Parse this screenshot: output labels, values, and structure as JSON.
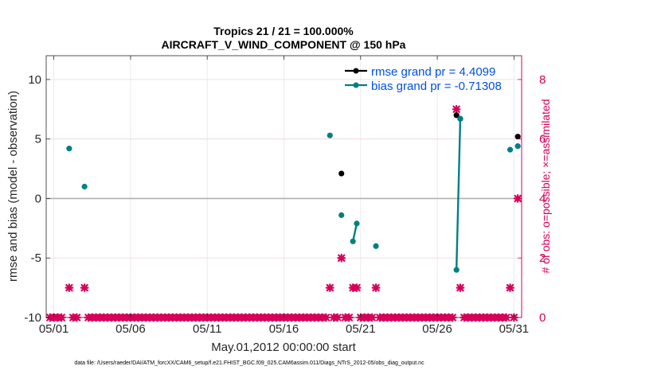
{
  "chart_data": {
    "type": "line",
    "title_line1": "Tropics 21 / 21 = 100.000%",
    "title_line2": "AIRCRAFT_V_WIND_COMPONENT @ 150 hPa",
    "xlabel": "May.01,2012 00:00:00 start",
    "ylabel_left": "rmse and bias (model - observation)",
    "ylabel_right": "# of obs: o=possible; ×=assimilated",
    "footer": "data file: /Users/raeder/DAI/ATM_forcXX/CAM6_setup/f.e21.FHIST_BGC.f09_025.CAM6assim.011/Diags_NTrS_2012-05/obs_diag_output.nc",
    "xlim": [
      0.5,
      31.5
    ],
    "ylim_left": [
      -10,
      12
    ],
    "ylim_right": [
      0,
      8.8
    ],
    "x_ticks": [
      1,
      6,
      11,
      16,
      21,
      26,
      31
    ],
    "x_tick_labels": [
      "05/01",
      "05/06",
      "05/11",
      "05/16",
      "05/21",
      "05/26",
      "05/31"
    ],
    "y_ticks_left": [
      -10,
      -5,
      0,
      5,
      10
    ],
    "y_tick_labels_left": [
      "-10",
      "-5",
      "0",
      "5",
      "10"
    ],
    "y_ticks_right": [
      0,
      2,
      4,
      6,
      8
    ],
    "y_tick_labels_right": [
      "0",
      "2",
      "4",
      "6",
      "8"
    ],
    "colors": {
      "rmse": "#000000",
      "bias": "#008080",
      "obs": "#d6005a",
      "legend_text": "#0050e6",
      "zero_line": "#b0b0b0",
      "grid": "#e6e6e6"
    },
    "series": [
      {
        "name": "rmse grand pr = 4.4099",
        "color": "#000000",
        "axis": "left",
        "segments": [
          [
            [
              19.75,
              2.1
            ]
          ],
          [
            [
              27.25,
              7.0
            ],
            [
              27.5,
              6.7
            ]
          ],
          [
            [
              31.25,
              5.2
            ]
          ]
        ]
      },
      {
        "name": "bias grand pr = -0.71308",
        "color": "#008080",
        "axis": "left",
        "segments": [
          [
            [
              2.0,
              4.2
            ]
          ],
          [
            [
              3.0,
              1.0
            ]
          ],
          [
            [
              19.0,
              5.3
            ]
          ],
          [
            [
              19.75,
              -1.4
            ]
          ],
          [
            [
              20.5,
              -3.6
            ],
            [
              20.75,
              -2.1
            ]
          ],
          [
            [
              22.0,
              -4.0
            ]
          ],
          [
            [
              27.25,
              -6.0
            ],
            [
              27.5,
              6.7
            ]
          ],
          [
            [
              30.75,
              4.1
            ]
          ],
          [
            [
              31.25,
              4.4
            ]
          ]
        ]
      }
    ],
    "obs_assimilated": {
      "name": "# of obs assimilated",
      "axis": "right",
      "x": [
        0.75,
        1.0,
        1.25,
        1.5,
        2.0,
        2.25,
        2.5,
        3.0,
        3.25,
        3.5,
        3.75,
        4.0,
        4.25,
        4.5,
        4.75,
        5.0,
        5.25,
        5.5,
        5.75,
        6.0,
        6.25,
        6.5,
        6.75,
        7.0,
        7.25,
        7.5,
        7.75,
        8.0,
        8.25,
        8.5,
        8.75,
        9.0,
        9.25,
        9.5,
        9.75,
        10.0,
        10.25,
        10.5,
        10.75,
        11.0,
        11.25,
        11.5,
        11.75,
        12.0,
        12.25,
        12.5,
        12.75,
        13.0,
        13.25,
        13.5,
        13.75,
        14.0,
        14.25,
        14.5,
        14.75,
        15.0,
        15.25,
        15.5,
        15.75,
        16.0,
        16.25,
        16.5,
        16.75,
        17.0,
        17.25,
        17.5,
        17.75,
        18.0,
        18.25,
        18.5,
        18.75,
        19.0,
        19.25,
        19.5,
        19.75,
        20.0,
        20.25,
        20.5,
        20.75,
        21.0,
        21.25,
        21.5,
        21.75,
        22.0,
        22.25,
        22.5,
        22.75,
        23.0,
        23.25,
        23.5,
        23.75,
        24.0,
        24.25,
        24.5,
        24.75,
        25.0,
        25.25,
        25.5,
        25.75,
        26.0,
        26.25,
        26.5,
        26.75,
        27.0,
        27.25,
        27.5,
        27.75,
        28.0,
        28.25,
        28.5,
        28.75,
        29.0,
        29.25,
        29.5,
        29.75,
        30.0,
        30.25,
        30.5,
        30.75,
        31.0,
        31.25
      ],
      "y": [
        0,
        0,
        0,
        0,
        1,
        0,
        0,
        1,
        0,
        0,
        0,
        0,
        0,
        0,
        0,
        0,
        0,
        0,
        0,
        0,
        0,
        0,
        0,
        0,
        0,
        0,
        0,
        0,
        0,
        0,
        0,
        0,
        0,
        0,
        0,
        0,
        0,
        0,
        0,
        0,
        0,
        0,
        0,
        0,
        0,
        0,
        0,
        0,
        0,
        0,
        0,
        0,
        0,
        0,
        0,
        0,
        0,
        0,
        0,
        0,
        0,
        0,
        0,
        0,
        0,
        0,
        0,
        0,
        0,
        0,
        0,
        1,
        0,
        0,
        2,
        0,
        0,
        1,
        1,
        0,
        0,
        0,
        0,
        1,
        0,
        0,
        0,
        0,
        0,
        0,
        0,
        0,
        0,
        0,
        0,
        0,
        0,
        0,
        0,
        0,
        0,
        0,
        0,
        0,
        7,
        1,
        0,
        0,
        0,
        0,
        0,
        0,
        0,
        0,
        0,
        0,
        0,
        0,
        1,
        0,
        4
      ]
    }
  }
}
